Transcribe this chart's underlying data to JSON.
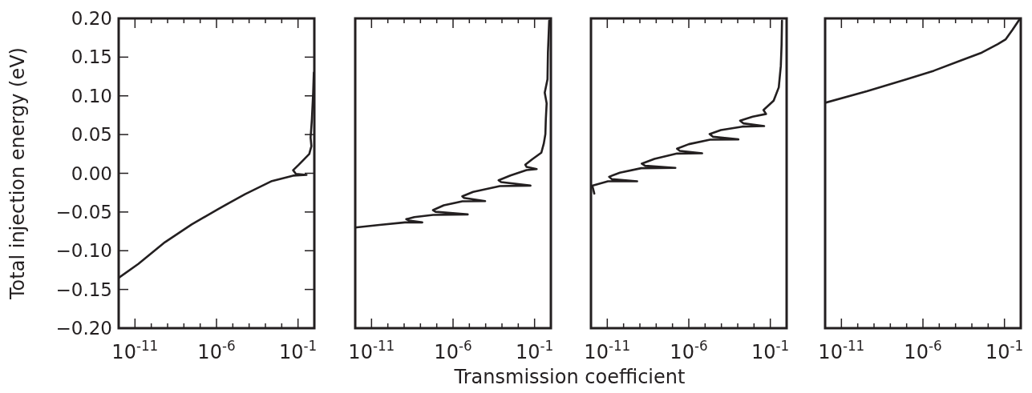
{
  "chart_data": [
    {
      "type": "line",
      "ylabel": "Total injection energy (eV)",
      "log": "x",
      "xlim": [
        1e-12,
        1
      ],
      "ylim": [
        -0.2,
        0.2
      ],
      "xticks": [
        {
          "value": 1e-11,
          "label": "10$^{-11}$"
        },
        {
          "value": 1e-10,
          "label": null
        },
        {
          "value": 1e-09,
          "label": null
        },
        {
          "value": 1e-08,
          "label": null
        },
        {
          "value": 1e-07,
          "label": null
        },
        {
          "value": 1e-06,
          "label": "10$^{-6}$"
        },
        {
          "value": 1e-05,
          "label": null
        },
        {
          "value": 0.0001,
          "label": null
        },
        {
          "value": 0.001,
          "label": null
        },
        {
          "value": 0.01,
          "label": null
        },
        {
          "value": 0.1,
          "label": "10$^{-1}$"
        }
      ],
      "yticks": [
        {
          "value": -0.2,
          "label": "−0.20"
        },
        {
          "value": -0.15,
          "label": "−0.15"
        },
        {
          "value": -0.1,
          "label": "−0.10"
        },
        {
          "value": -0.05,
          "label": "−0.05"
        },
        {
          "value": 0,
          "label": "0.00"
        },
        {
          "value": 0.05,
          "label": "0.05"
        },
        {
          "value": 0.1,
          "label": "0.10"
        },
        {
          "value": 0.15,
          "label": "0.15"
        },
        {
          "value": 0.2,
          "label": "0.20"
        }
      ],
      "series": [
        {
          "color": "#231f20",
          "x": [
            1e-12,
            1.6e-11,
            6.9e-10,
            3e-08,
            1.3e-06,
            5.6e-05,
            0.0025,
            0.05,
            0.33,
            0.074,
            0.05,
            0.11,
            0.49,
            0.66,
            0.59,
            0.71,
            0.85,
            0.93
          ],
          "values": [
            -0.135,
            -0.117,
            -0.089,
            -0.066,
            -0.046,
            -0.027,
            -0.01,
            -0.003,
            -0.002,
            -0.0007,
            0.004,
            0.011,
            0.025,
            0.035,
            0.046,
            0.07,
            0.104,
            0.13
          ]
        }
      ]
    },
    {
      "type": "line",
      "xlabel": "Transmission coefficient",
      "log": "x",
      "tick_labels": "x",
      "xlim": [
        1e-12,
        1
      ],
      "ylim": [
        -0.2,
        0.2
      ],
      "xticks": [
        {
          "value": 1e-11,
          "label": "10$^{-11}$"
        },
        {
          "value": 1e-10,
          "label": null
        },
        {
          "value": 1e-09,
          "label": null
        },
        {
          "value": 1e-08,
          "label": null
        },
        {
          "value": 1e-07,
          "label": null
        },
        {
          "value": 1e-06,
          "label": "10$^{-6}$"
        },
        {
          "value": 1e-05,
          "label": null
        },
        {
          "value": 0.0001,
          "label": null
        },
        {
          "value": 0.001,
          "label": null
        },
        {
          "value": 0.01,
          "label": null
        },
        {
          "value": 0.1,
          "label": "10$^{-1}$"
        }
      ],
      "series": [
        {
          "color": "#231f20",
          "x": [
            1e-12,
            3.1e-11,
            1.1e-09,
            1.3e-08,
            2e-09,
            1.35e-09,
            4.2e-09,
            5.9e-08,
            7.9e-06,
            8.5e-08,
            5.9e-08,
            2.7e-07,
            3.7e-06,
            9.3e-05,
            4.6e-06,
            3.7e-06,
            1.7e-05,
            0.00074,
            0.056,
            0.00089,
            0.00062,
            0.0033,
            0.032,
            0.135,
            0.032,
            0.027,
            0.069,
            0.26,
            0.37,
            0.46,
            0.49,
            0.55,
            0.42,
            0.62,
            0.66,
            0.79
          ],
          "values": [
            -0.07,
            -0.0666,
            -0.0634,
            -0.0634,
            -0.061,
            -0.0593,
            -0.0566,
            -0.0538,
            -0.0531,
            -0.0497,
            -0.0476,
            -0.0414,
            -0.0362,
            -0.0359,
            -0.0317,
            -0.0297,
            -0.0241,
            -0.0166,
            -0.0159,
            -0.0114,
            -0.009,
            -0.0028,
            0.0041,
            0.0055,
            0.0083,
            0.011,
            0.0179,
            0.0266,
            0.0386,
            0.0507,
            0.0697,
            0.0903,
            0.1041,
            0.1214,
            0.1559,
            0.1972
          ]
        }
      ]
    },
    {
      "type": "line",
      "log": "x",
      "tick_labels": "x",
      "xlim": [
        1e-12,
        1
      ],
      "ylim": [
        -0.2,
        0.2
      ],
      "xticks": [
        {
          "value": 1e-11,
          "label": "10$^{-11}$"
        },
        {
          "value": 1e-10,
          "label": null
        },
        {
          "value": 1e-09,
          "label": null
        },
        {
          "value": 1e-08,
          "label": null
        },
        {
          "value": 1e-07,
          "label": null
        },
        {
          "value": 1e-06,
          "label": "10$^{-6}$"
        },
        {
          "value": 1e-05,
          "label": null
        },
        {
          "value": 0.0001,
          "label": null
        },
        {
          "value": 0.001,
          "label": null
        },
        {
          "value": 0.01,
          "label": null
        },
        {
          "value": 0.1,
          "label": "10$^{-1}$"
        }
      ],
      "series": [
        {
          "color": "#231f20",
          "x": [
            1.6e-12,
            1.2e-12,
            1.1e-11,
            6.8e-10,
            1.9e-11,
            1.3e-11,
            5.9e-11,
            1.2e-09,
            1.5e-07,
            2.1e-09,
            1.3e-09,
            7.8e-09,
            1.9e-07,
            6.6e-06,
            2.8e-07,
            1.9e-07,
            1e-06,
            2e-05,
            0.0011,
            3e-05,
            1.9e-05,
            9.3e-05,
            0.0019,
            0.042,
            0.0022,
            0.0014,
            0.0083,
            0.055,
            0.038,
            0.16,
            0.33,
            0.44,
            0.49,
            0.52
          ],
          "values": [
            -0.0262,
            -0.0159,
            -0.0103,
            -0.0103,
            -0.0076,
            -0.0045,
            0.0007,
            0.0066,
            0.0069,
            0.0097,
            0.0124,
            0.0186,
            0.0255,
            0.0259,
            0.029,
            0.0317,
            0.0376,
            0.0434,
            0.0438,
            0.0472,
            0.0507,
            0.0559,
            0.0603,
            0.061,
            0.0645,
            0.0679,
            0.0731,
            0.0766,
            0.0817,
            0.0938,
            0.111,
            0.1386,
            0.1662,
            0.1972
          ]
        }
      ]
    },
    {
      "type": "line",
      "log": "x",
      "tick_labels": "x",
      "xlim": [
        1e-12,
        1
      ],
      "ylim": [
        -0.2,
        0.2
      ],
      "xticks": [
        {
          "value": 1e-11,
          "label": "10$^{-11}$"
        },
        {
          "value": 1e-10,
          "label": null
        },
        {
          "value": 1e-09,
          "label": null
        },
        {
          "value": 1e-08,
          "label": null
        },
        {
          "value": 1e-07,
          "label": null
        },
        {
          "value": 1e-06,
          "label": "10$^{-6}$"
        },
        {
          "value": 1e-05,
          "label": null
        },
        {
          "value": 0.0001,
          "label": null
        },
        {
          "value": 0.001,
          "label": null
        },
        {
          "value": 0.01,
          "label": null
        },
        {
          "value": 0.1,
          "label": "10$^{-1}$"
        }
      ],
      "series": [
        {
          "color": "#231f20",
          "x": [
            1e-12,
            3.6e-10,
            1e-07,
            4.6e-06,
            0.0002,
            0.0041,
            0.039,
            0.12,
            0.31,
            0.85
          ],
          "values": [
            0.091,
            0.1059,
            0.1214,
            0.1324,
            0.1455,
            0.1559,
            0.1669,
            0.1731,
            0.1852,
            0.199
          ]
        }
      ]
    }
  ]
}
